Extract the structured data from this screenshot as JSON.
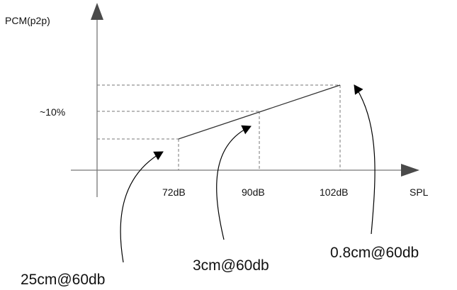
{
  "axes": {
    "y_title": "PCM(p2p)",
    "x_title": "SPL"
  },
  "y_marker": "~10%",
  "x_ticks": [
    "72dB",
    "90dB",
    "102dB"
  ],
  "callouts": [
    "25cm@60db",
    "3cm@60db",
    "0.8cm@60db"
  ]
}
